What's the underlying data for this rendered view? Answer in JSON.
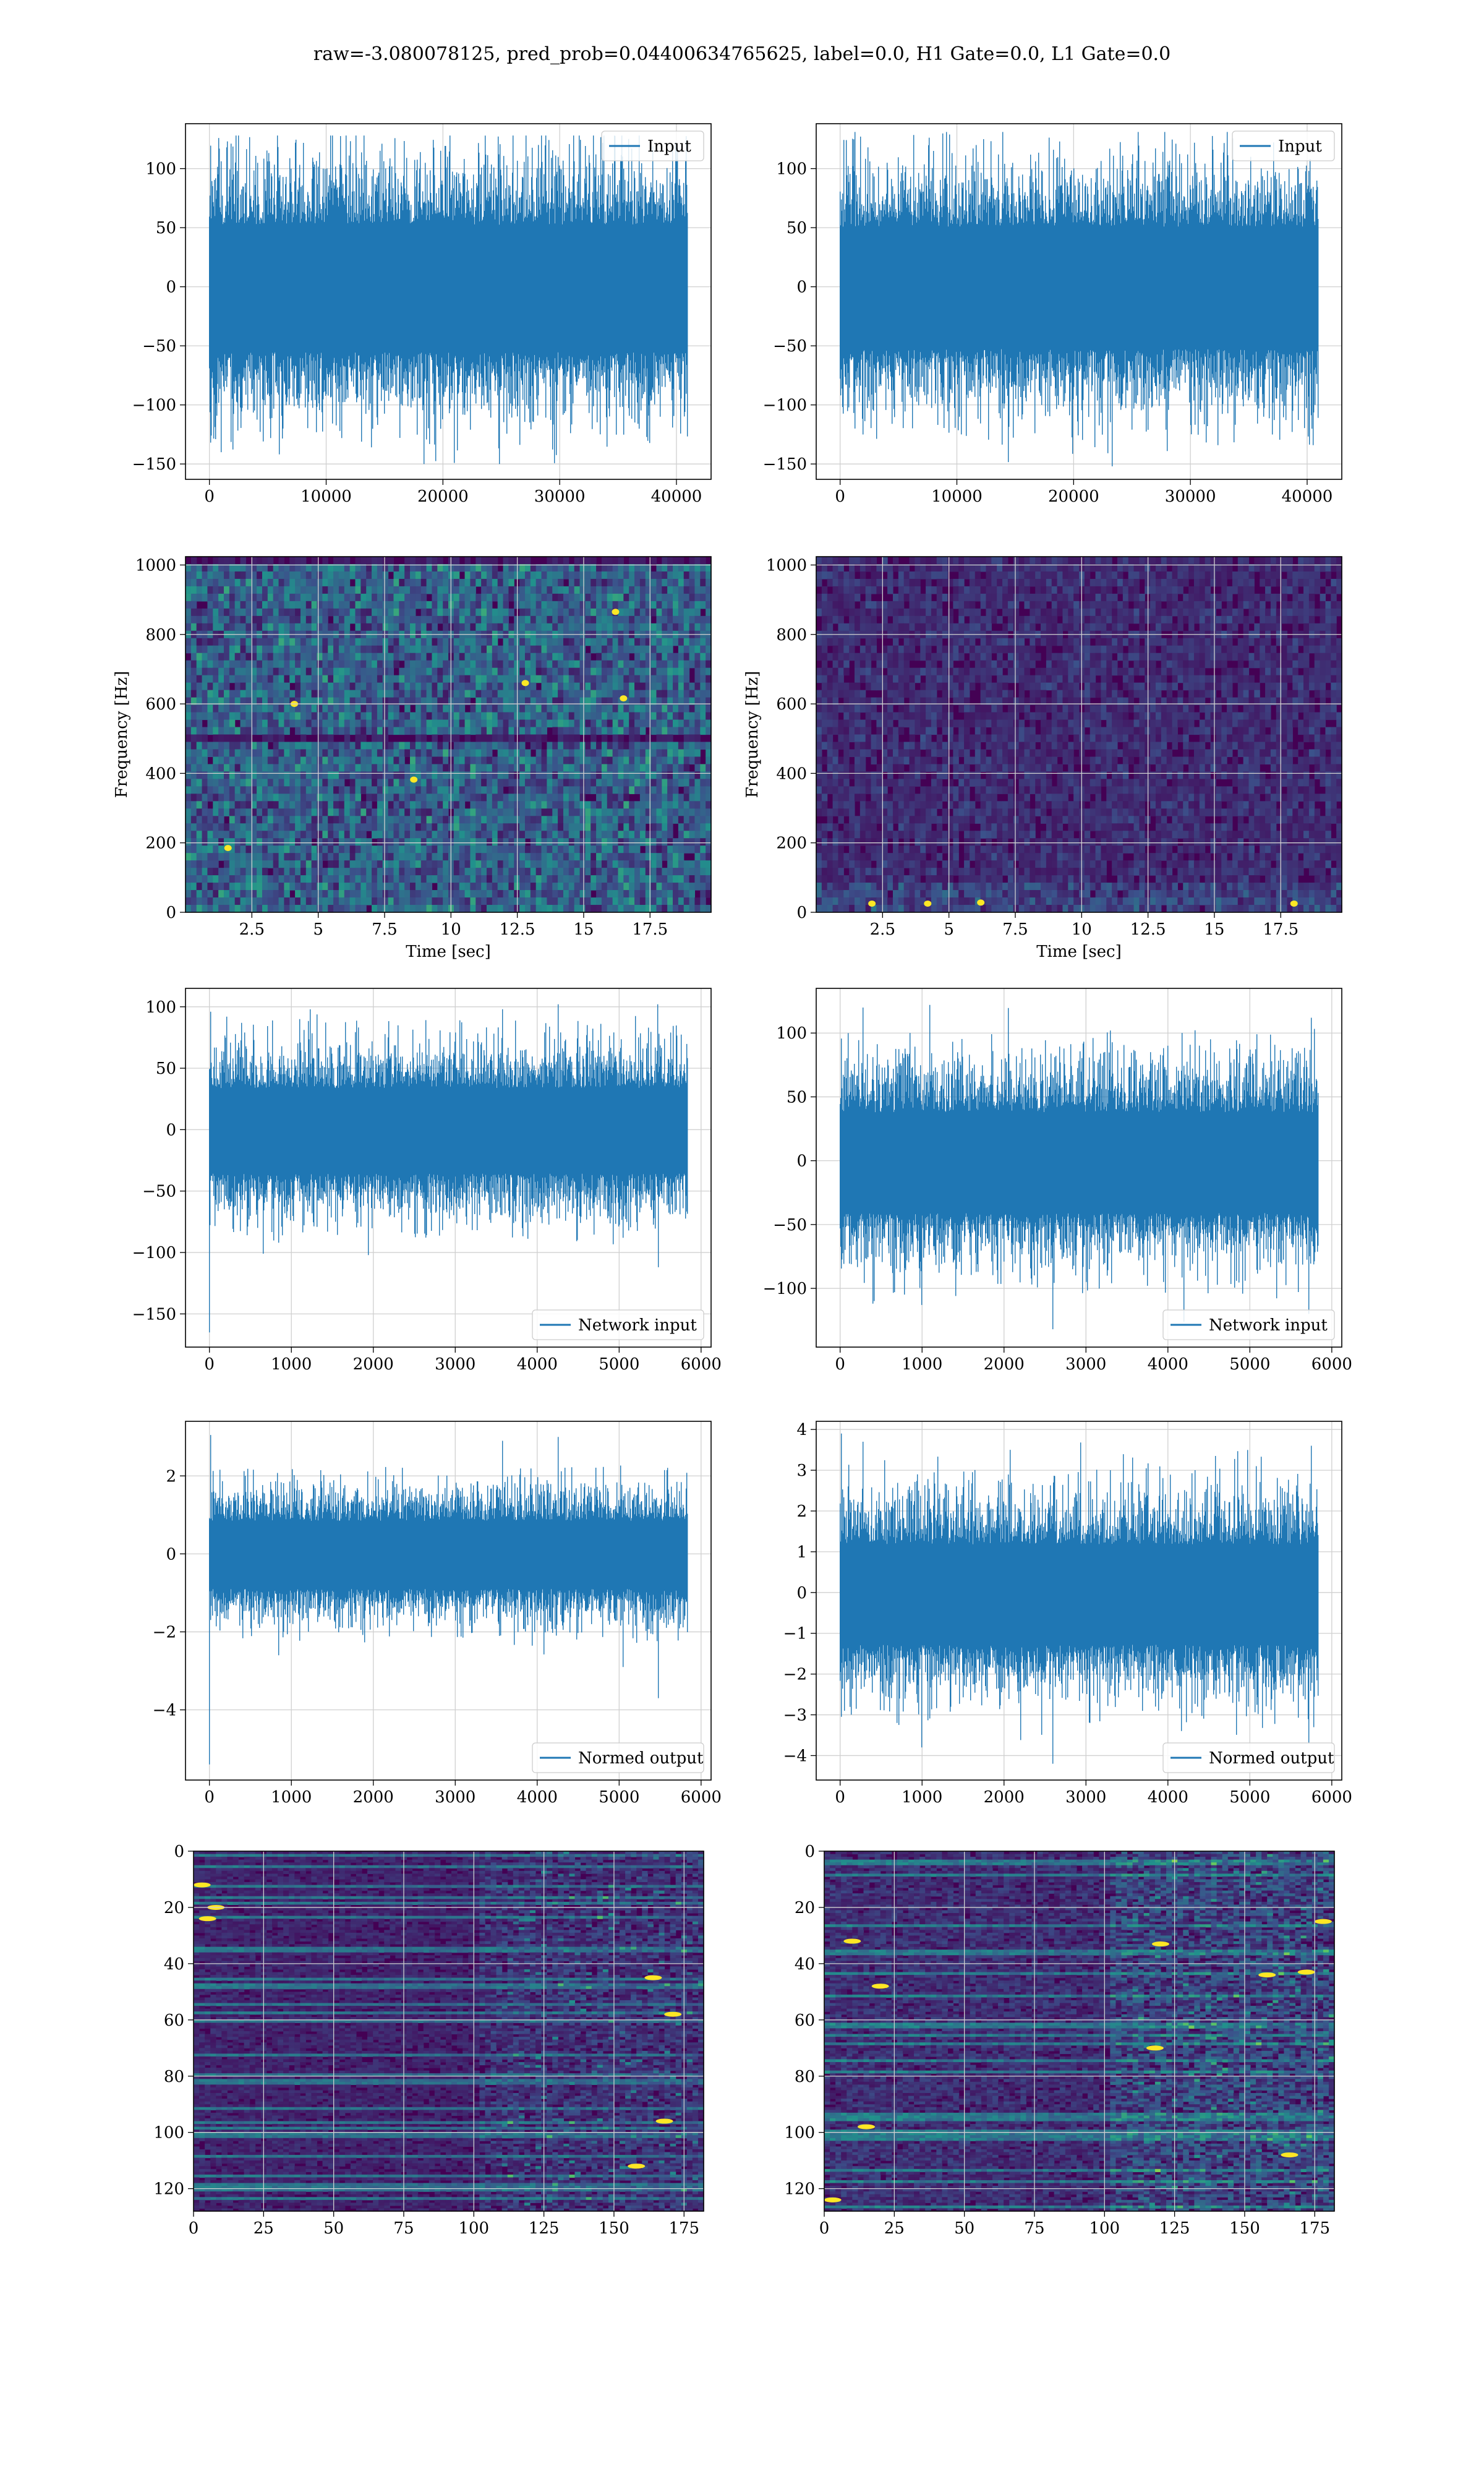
{
  "title": "raw=-3.080078125, pred_prob=0.04400634765625, label=0.0, H1 Gate=0.0, L1 Gate=0.0",
  "colors": {
    "line": "#1f77b4",
    "grid": "#d0d0d0",
    "axis": "#000000",
    "viridis_low": "#440154",
    "viridis_mid": "#21918c",
    "viridis_high": "#fde725"
  },
  "chart_data": [
    {
      "id": "input-left",
      "type": "line",
      "title": "",
      "xlabel": "",
      "ylabel": "",
      "xlim": [
        -2048,
        42967
      ],
      "ylim": [
        -163,
        138
      ],
      "xticks": [
        0,
        10000,
        20000,
        30000,
        40000
      ],
      "yticks": [
        -150,
        -100,
        -50,
        0,
        50,
        100
      ],
      "legend": "top-right",
      "grid": true,
      "series": [
        {
          "name": "Input",
          "n_points": 40960,
          "x_range": [
            0,
            40960
          ],
          "band": [
            -65,
            62
          ],
          "peaks": [
            -150,
            128
          ],
          "spikes": [
            [
              1000,
              -140
            ],
            [
              2400,
              98
            ],
            [
              7400,
              122
            ],
            [
              18400,
              -150
            ],
            [
              20600,
              128
            ],
            [
              28200,
              120
            ],
            [
              30400,
              -107
            ],
            [
              36200,
              117
            ],
            [
              38600,
              -110
            ]
          ]
        }
      ]
    },
    {
      "id": "input-right",
      "type": "line",
      "title": "",
      "xlabel": "",
      "ylabel": "",
      "xlim": [
        -2048,
        42967
      ],
      "ylim": [
        -163,
        138
      ],
      "xticks": [
        0,
        10000,
        20000,
        30000,
        40000
      ],
      "yticks": [
        -150,
        -100,
        -50,
        0,
        50,
        100
      ],
      "legend": "top-right",
      "grid": true,
      "series": [
        {
          "name": "Input",
          "n_points": 40960,
          "x_range": [
            0,
            40960
          ],
          "band": [
            -62,
            60
          ],
          "peaks": [
            -152,
            131
          ],
          "spikes": [
            [
              1300,
              131
            ],
            [
              2400,
              118
            ],
            [
              10400,
              -125
            ],
            [
              13600,
              112
            ],
            [
              23300,
              -152
            ],
            [
              29800,
              112
            ],
            [
              31500,
              -118
            ],
            [
              35200,
              110
            ],
            [
              38800,
              -105
            ]
          ]
        }
      ]
    },
    {
      "id": "spectrogram-left",
      "type": "heatmap",
      "title": "",
      "xlabel": "Time [sec]",
      "ylabel": "Frequency [Hz]",
      "xlim": [
        0,
        19.8
      ],
      "ylim": [
        0,
        1024
      ],
      "xticks": [
        2.5,
        5.0,
        7.5,
        10.0,
        12.5,
        15.0,
        17.5
      ],
      "yticks": [
        0,
        200,
        400,
        600,
        800,
        1000
      ],
      "colormap": "viridis",
      "grid": true,
      "rows": 48,
      "cols": 96,
      "intensity": 0.38,
      "dark_bands": [
        [
          490,
          520
        ],
        [
          1005,
          1024
        ]
      ],
      "low_freq_glow": false,
      "hot_spots": [
        [
          1.6,
          185
        ],
        [
          4.1,
          600
        ],
        [
          16.5,
          616
        ],
        [
          16.2,
          865
        ],
        [
          12.8,
          660
        ],
        [
          8.6,
          382
        ]
      ]
    },
    {
      "id": "spectrogram-right",
      "type": "heatmap",
      "title": "",
      "xlabel": "Time [sec]",
      "ylabel": "Frequency [Hz]",
      "xlim": [
        0,
        19.8
      ],
      "ylim": [
        0,
        1024
      ],
      "xticks": [
        2.5,
        5.0,
        7.5,
        10.0,
        12.5,
        15.0,
        17.5
      ],
      "yticks": [
        0,
        200,
        400,
        600,
        800,
        1000
      ],
      "colormap": "viridis",
      "grid": true,
      "rows": 48,
      "cols": 96,
      "intensity": 0.16,
      "dark_bands": [],
      "low_freq_glow": true,
      "hot_spots": [
        [
          2.1,
          25
        ],
        [
          4.2,
          25
        ],
        [
          6.2,
          28
        ],
        [
          18.0,
          25
        ]
      ]
    },
    {
      "id": "network-input-left",
      "type": "line",
      "title": "",
      "xlabel": "",
      "ylabel": "",
      "xlim": [
        -292,
        6122
      ],
      "ylim": [
        -177,
        115
      ],
      "xticks": [
        0,
        1000,
        2000,
        3000,
        4000,
        5000,
        6000
      ],
      "yticks": [
        -150,
        -100,
        -50,
        0,
        50,
        100
      ],
      "legend": "bottom-right",
      "grid": true,
      "series": [
        {
          "name": "Network input",
          "n_points": 5830,
          "x_range": [
            0,
            5830
          ],
          "band": [
            -42,
            40
          ],
          "peaks": [
            -165,
            102
          ],
          "spikes": [
            [
              2,
              -165
            ],
            [
              15,
              96
            ],
            [
              210,
              92
            ],
            [
              850,
              -92
            ],
            [
              3580,
              98
            ],
            [
              4260,
              102
            ],
            [
              5050,
              -88
            ],
            [
              5480,
              -112
            ]
          ]
        }
      ]
    },
    {
      "id": "network-input-right",
      "type": "line",
      "title": "",
      "xlabel": "",
      "ylabel": "",
      "xlim": [
        -292,
        6122
      ],
      "ylim": [
        -146,
        135
      ],
      "xticks": [
        0,
        1000,
        2000,
        3000,
        4000,
        5000,
        6000
      ],
      "yticks": [
        -100,
        -50,
        0,
        50,
        100
      ],
      "legend": "bottom-right",
      "grid": true,
      "series": [
        {
          "name": "Network input",
          "n_points": 5830,
          "x_range": [
            0,
            5830
          ],
          "band": [
            -48,
            45
          ],
          "peaks": [
            -132,
            122
          ],
          "spikes": [
            [
              280,
              120
            ],
            [
              1100,
              122
            ],
            [
              1000,
              -113
            ],
            [
              2600,
              -132
            ],
            [
              3300,
              102
            ],
            [
              5720,
              -120
            ],
            [
              5750,
              112
            ],
            [
              400,
              -112
            ]
          ]
        }
      ]
    },
    {
      "id": "normed-output-left",
      "type": "line",
      "title": "",
      "xlabel": "",
      "ylabel": "",
      "xlim": [
        -292,
        6122
      ],
      "ylim": [
        -5.8,
        3.4
      ],
      "xticks": [
        0,
        1000,
        2000,
        3000,
        4000,
        5000,
        6000
      ],
      "yticks": [
        -4,
        -2,
        0,
        2
      ],
      "legend": "bottom-right",
      "grid": true,
      "series": [
        {
          "name": "Normed output",
          "n_points": 5830,
          "x_range": [
            0,
            5830
          ],
          "band": [
            -1.05,
            1.0
          ],
          "peaks": [
            -5.4,
            3.1
          ],
          "spikes": [
            [
              2,
              -5.4
            ],
            [
              15,
              3.05
            ],
            [
              850,
              -2.6
            ],
            [
              3580,
              2.9
            ],
            [
              4260,
              3.0
            ],
            [
              5050,
              -2.9
            ],
            [
              5480,
              -3.7
            ]
          ]
        }
      ]
    },
    {
      "id": "normed-output-right",
      "type": "line",
      "title": "",
      "xlabel": "",
      "ylabel": "",
      "xlim": [
        -292,
        6122
      ],
      "ylim": [
        -4.6,
        4.2
      ],
      "xticks": [
        0,
        1000,
        2000,
        3000,
        4000,
        5000,
        6000
      ],
      "yticks": [
        -4,
        -3,
        -2,
        -1,
        0,
        1,
        2,
        3,
        4
      ],
      "legend": "bottom-right",
      "grid": true,
      "series": [
        {
          "name": "Normed output",
          "n_points": 5830,
          "x_range": [
            0,
            5830
          ],
          "band": [
            -1.5,
            1.4
          ],
          "peaks": [
            -4.2,
            3.9
          ],
          "spikes": [
            [
              15,
              3.9
            ],
            [
              280,
              3.7
            ],
            [
              1000,
              -3.8
            ],
            [
              2600,
              -4.2
            ],
            [
              5720,
              -3.7
            ],
            [
              5750,
              3.6
            ]
          ]
        }
      ]
    },
    {
      "id": "activation-map-left",
      "type": "heatmap",
      "title": "",
      "xlabel": "",
      "ylabel": "",
      "xlim": [
        0,
        182
      ],
      "ylim": [
        128,
        0
      ],
      "xticks": [
        0,
        25,
        50,
        75,
        100,
        125,
        150,
        175
      ],
      "yticks": [
        0,
        20,
        40,
        60,
        80,
        100,
        120
      ],
      "colormap": "viridis",
      "grid": true,
      "rows": 128,
      "cols": 182,
      "intensity": 0.24,
      "hot_spots": [
        [
          3,
          12
        ],
        [
          8,
          20
        ],
        [
          5,
          24
        ],
        [
          164,
          45
        ],
        [
          171,
          58
        ],
        [
          168,
          96
        ],
        [
          158,
          112
        ]
      ]
    },
    {
      "id": "activation-map-right",
      "type": "heatmap",
      "title": "",
      "xlabel": "",
      "ylabel": "",
      "xlim": [
        0,
        182
      ],
      "ylim": [
        128,
        0
      ],
      "xticks": [
        0,
        25,
        50,
        75,
        100,
        125,
        150,
        175
      ],
      "yticks": [
        0,
        20,
        40,
        60,
        80,
        100,
        120
      ],
      "colormap": "viridis",
      "grid": true,
      "rows": 128,
      "cols": 182,
      "intensity": 0.36,
      "hot_spots": [
        [
          10,
          32
        ],
        [
          20,
          48
        ],
        [
          120,
          33
        ],
        [
          158,
          44
        ],
        [
          172,
          43
        ],
        [
          178,
          25
        ],
        [
          3,
          124
        ],
        [
          118,
          70
        ],
        [
          15,
          98
        ],
        [
          166,
          108
        ]
      ]
    }
  ]
}
